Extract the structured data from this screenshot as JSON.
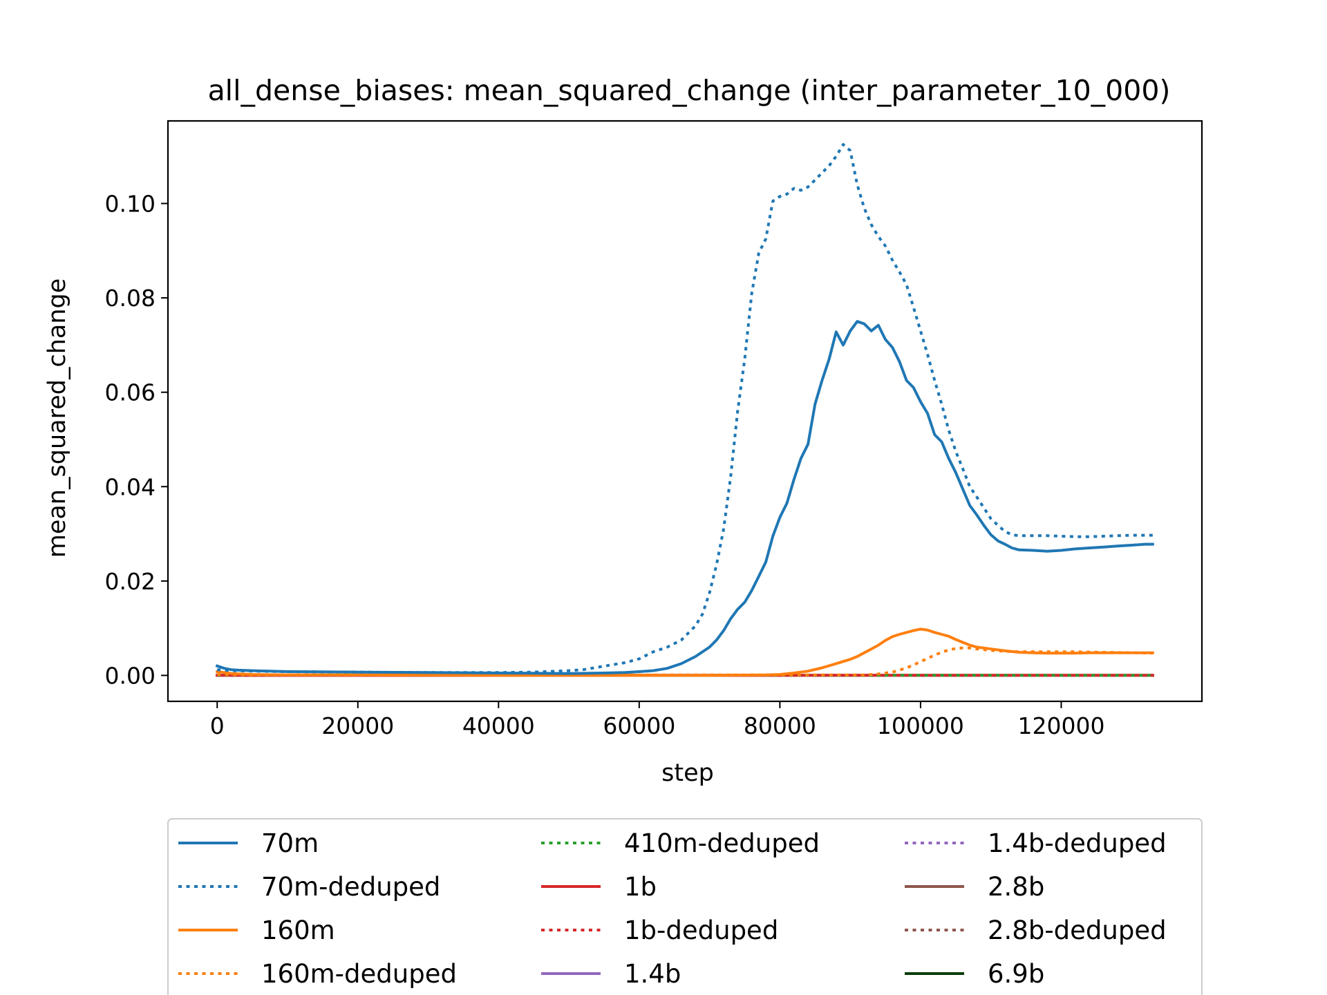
{
  "chart_data": {
    "type": "line",
    "title": "all_dense_biases: mean_squared_change (inter_parameter_10_000)",
    "xlabel": "step",
    "ylabel": "mean_squared_change",
    "xlim": [
      -7000,
      140000
    ],
    "ylim": [
      -0.0055,
      0.1175
    ],
    "xticks": [
      0,
      20000,
      40000,
      60000,
      80000,
      100000,
      120000
    ],
    "yticks": [
      0.0,
      0.02,
      0.04,
      0.06,
      0.08,
      0.1
    ],
    "ytick_labels": [
      "0.00",
      "0.02",
      "0.04",
      "0.06",
      "0.08",
      "0.10"
    ],
    "grid": false,
    "legend_placement": "below plot, 3 columns",
    "series": [
      {
        "name": "70m",
        "color": "#1f77b4",
        "style": "solid",
        "x": [
          0,
          1000,
          2000,
          3000,
          5000,
          10000,
          20000,
          30000,
          40000,
          50000,
          55000,
          58000,
          60000,
          62000,
          64000,
          66000,
          68000,
          70000,
          71000,
          72000,
          73000,
          74000,
          75000,
          76000,
          77000,
          78000,
          79000,
          80000,
          81000,
          82000,
          83000,
          84000,
          85000,
          86000,
          87000,
          88000,
          89000,
          90000,
          91000,
          92000,
          93000,
          94000,
          95000,
          96000,
          97000,
          98000,
          99000,
          100000,
          101000,
          102000,
          103000,
          104000,
          105000,
          106000,
          107000,
          108000,
          109000,
          110000,
          111000,
          112000,
          113000,
          114000,
          116000,
          118000,
          120000,
          122000,
          124000,
          126000,
          128000,
          130000,
          132000,
          133000
        ],
        "y": [
          0.002,
          0.0015,
          0.0012,
          0.0011,
          0.001,
          0.0008,
          0.0007,
          0.0006,
          0.0005,
          0.0004,
          0.0005,
          0.0006,
          0.0008,
          0.001,
          0.0015,
          0.0025,
          0.004,
          0.006,
          0.0075,
          0.0095,
          0.012,
          0.014,
          0.0155,
          0.018,
          0.021,
          0.024,
          0.0295,
          0.0335,
          0.0365,
          0.0415,
          0.046,
          0.049,
          0.0575,
          0.0625,
          0.067,
          0.0728,
          0.07,
          0.073,
          0.075,
          0.0745,
          0.073,
          0.0742,
          0.0712,
          0.0695,
          0.0665,
          0.0625,
          0.061,
          0.058,
          0.0555,
          0.051,
          0.0495,
          0.046,
          0.043,
          0.0395,
          0.036,
          0.034,
          0.0318,
          0.0298,
          0.0285,
          0.0278,
          0.027,
          0.0266,
          0.0265,
          0.0263,
          0.0265,
          0.0268,
          0.027,
          0.0272,
          0.0274,
          0.0276,
          0.0278,
          0.0278
        ]
      },
      {
        "name": "70m-deduped",
        "color": "#1f77b4",
        "style": "dotted",
        "x": [
          0,
          2000,
          5000,
          10000,
          20000,
          30000,
          40000,
          45000,
          50000,
          52000,
          54000,
          56000,
          58000,
          60000,
          62000,
          64000,
          66000,
          68000,
          69000,
          70000,
          71000,
          72000,
          73000,
          74000,
          75000,
          76000,
          77000,
          78000,
          79000,
          80000,
          81000,
          82000,
          83000,
          84000,
          85000,
          86000,
          87000,
          88000,
          89000,
          90000,
          91000,
          92000,
          93000,
          94000,
          95000,
          96000,
          97000,
          98000,
          99000,
          100000,
          101000,
          102000,
          103000,
          104000,
          105000,
          106000,
          107000,
          108000,
          109000,
          110000,
          111000,
          112000,
          113000,
          114000,
          116000,
          118000,
          120000,
          122000,
          124000,
          126000,
          128000,
          130000,
          132000,
          133000
        ],
        "y": [
          0.0012,
          0.001,
          0.0009,
          0.0008,
          0.0007,
          0.0006,
          0.0006,
          0.0007,
          0.001,
          0.0012,
          0.0017,
          0.0022,
          0.0027,
          0.0035,
          0.005,
          0.006,
          0.0075,
          0.0105,
          0.013,
          0.0175,
          0.0235,
          0.031,
          0.042,
          0.056,
          0.067,
          0.081,
          0.0895,
          0.0925,
          0.1005,
          0.1015,
          0.102,
          0.1032,
          0.1028,
          0.1035,
          0.105,
          0.1065,
          0.108,
          0.11,
          0.1125,
          0.1112,
          0.104,
          0.099,
          0.0955,
          0.093,
          0.091,
          0.088,
          0.0855,
          0.0828,
          0.078,
          0.073,
          0.068,
          0.0625,
          0.0575,
          0.052,
          0.0475,
          0.0438,
          0.04,
          0.0378,
          0.0355,
          0.0332,
          0.0318,
          0.0305,
          0.0298,
          0.0296,
          0.0296,
          0.0296,
          0.0295,
          0.0294,
          0.0294,
          0.0295,
          0.0296,
          0.0297,
          0.0297,
          0.0297
        ]
      },
      {
        "name": "160m",
        "color": "#ff7f0e",
        "style": "solid",
        "x": [
          0,
          1000,
          2000,
          5000,
          10000,
          20000,
          40000,
          60000,
          70000,
          78000,
          80000,
          82000,
          84000,
          86000,
          88000,
          90000,
          91000,
          92000,
          93000,
          94000,
          95000,
          96000,
          97000,
          98000,
          99000,
          100000,
          101000,
          102000,
          103000,
          104000,
          105000,
          106000,
          107000,
          108000,
          110000,
          112000,
          114000,
          116000,
          118000,
          120000,
          122000,
          124000,
          126000,
          128000,
          130000,
          133000
        ],
        "y": [
          0.0008,
          0.0006,
          0.0004,
          0.0002,
          0.0001,
          0.0001,
          0.0,
          0.0,
          0.0,
          0.0001,
          0.0002,
          0.0005,
          0.0009,
          0.0016,
          0.0025,
          0.0034,
          0.004,
          0.0048,
          0.0056,
          0.0064,
          0.0074,
          0.0082,
          0.0087,
          0.0091,
          0.0095,
          0.0098,
          0.0096,
          0.0091,
          0.0087,
          0.0083,
          0.0076,
          0.007,
          0.0064,
          0.006,
          0.0056,
          0.0052,
          0.0049,
          0.0048,
          0.0047,
          0.0047,
          0.0047,
          0.0048,
          0.0048,
          0.0048,
          0.0048,
          0.0048
        ]
      },
      {
        "name": "160m-deduped",
        "color": "#ff7f0e",
        "style": "dotted",
        "x": [
          0,
          5000,
          20000,
          60000,
          90000,
          92000,
          94000,
          96000,
          97000,
          98000,
          99000,
          100000,
          101000,
          102000,
          103000,
          104000,
          105000,
          106000,
          107000,
          108000,
          110000,
          112000,
          114000,
          118000,
          122000,
          126000,
          130000,
          133000
        ],
        "y": [
          0.0002,
          0.0001,
          0.0001,
          0.0001,
          0.0001,
          0.0001,
          0.0003,
          0.0007,
          0.0011,
          0.0016,
          0.0022,
          0.0029,
          0.0036,
          0.0043,
          0.0049,
          0.0054,
          0.0057,
          0.0058,
          0.0058,
          0.0056,
          0.0053,
          0.0051,
          0.005,
          0.005,
          0.005,
          0.0049,
          0.0048,
          0.0047
        ]
      },
      {
        "name": "410m-deduped",
        "color": "#2ca02c",
        "style": "dotted",
        "x": [
          0,
          133000
        ],
        "y": [
          0.0001,
          0.0
        ]
      },
      {
        "name": "1b",
        "color": "#d62728",
        "style": "solid",
        "x": [
          0,
          133000
        ],
        "y": [
          0.0,
          0.0
        ]
      },
      {
        "name": "1b-deduped",
        "color": "#d62728",
        "style": "dotted",
        "x": [
          0,
          133000
        ],
        "y": [
          0.0,
          0.0
        ]
      },
      {
        "name": "1.4b",
        "color": "#9467bd",
        "style": "solid",
        "x": [
          0,
          133000
        ],
        "y": [
          0.0,
          0.0
        ]
      },
      {
        "name": "1.4b-deduped",
        "color": "#9467bd",
        "style": "dotted",
        "x": [
          0,
          133000
        ],
        "y": [
          0.0,
          0.0
        ]
      },
      {
        "name": "2.8b",
        "color": "#8c564b",
        "style": "solid",
        "x": [
          0,
          133000
        ],
        "y": [
          0.0,
          0.0
        ]
      },
      {
        "name": "2.8b-deduped",
        "color": "#8c564b",
        "style": "dotted",
        "x": [
          0,
          133000
        ],
        "y": [
          0.0,
          0.0
        ]
      },
      {
        "name": "6.9b",
        "color": "#0b3d0b",
        "style": "solid",
        "x": [
          0,
          133000
        ],
        "y": [
          0.0,
          0.0
        ]
      }
    ]
  }
}
